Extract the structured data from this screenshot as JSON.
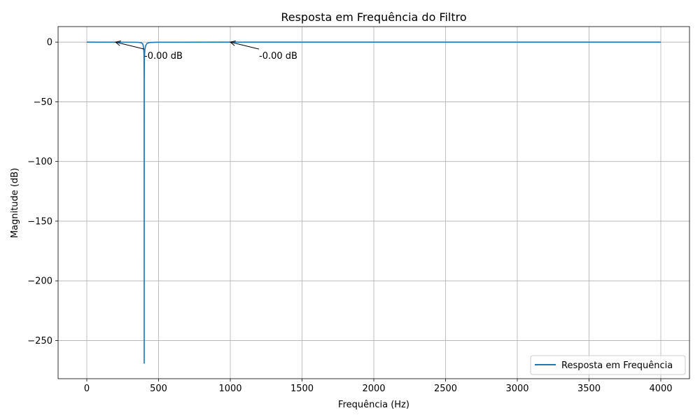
{
  "chart_data": {
    "type": "line",
    "title": "Resposta em Frequência do Filtro",
    "xlabel": "Frequência (Hz)",
    "ylabel": "Magnitude (dB)",
    "xlim": [
      -200,
      4200
    ],
    "ylim": [
      -282,
      13
    ],
    "xticks": [
      0,
      500,
      1000,
      1500,
      2000,
      2500,
      3000,
      3500,
      4000
    ],
    "yticks": [
      0,
      -50,
      -100,
      -150,
      -200,
      -250
    ],
    "ytick_labels": [
      "0",
      "−50",
      "−100",
      "−150",
      "−200",
      "−250"
    ],
    "grid": true,
    "legend_position": "bottom-right",
    "series": [
      {
        "name": "Resposta em Frequência",
        "color": "#1f77b4",
        "notch_hz": 400,
        "notch_depth_db": -269,
        "x": [
          0,
          300,
          360,
          380,
          390,
          395,
          398,
          399,
          399.5,
          400,
          400.5,
          401,
          402,
          405,
          410,
          420,
          440,
          500,
          1000,
          2000,
          3000,
          4000
        ],
        "y": [
          0,
          -0.05,
          -0.2,
          -0.5,
          -1.5,
          -4,
          -9,
          -18,
          -30,
          -269,
          -30,
          -18,
          -12,
          -6,
          -3,
          -1,
          -0.3,
          -0.1,
          0,
          0,
          0,
          0
        ]
      }
    ],
    "annotations": [
      {
        "text": "-0.00 dB",
        "point": [
          200,
          0
        ],
        "text_pos": [
          400,
          -7
        ]
      },
      {
        "text": "-0.00 dB",
        "point": [
          1000,
          0
        ],
        "text_pos": [
          1200,
          -7
        ]
      }
    ]
  }
}
